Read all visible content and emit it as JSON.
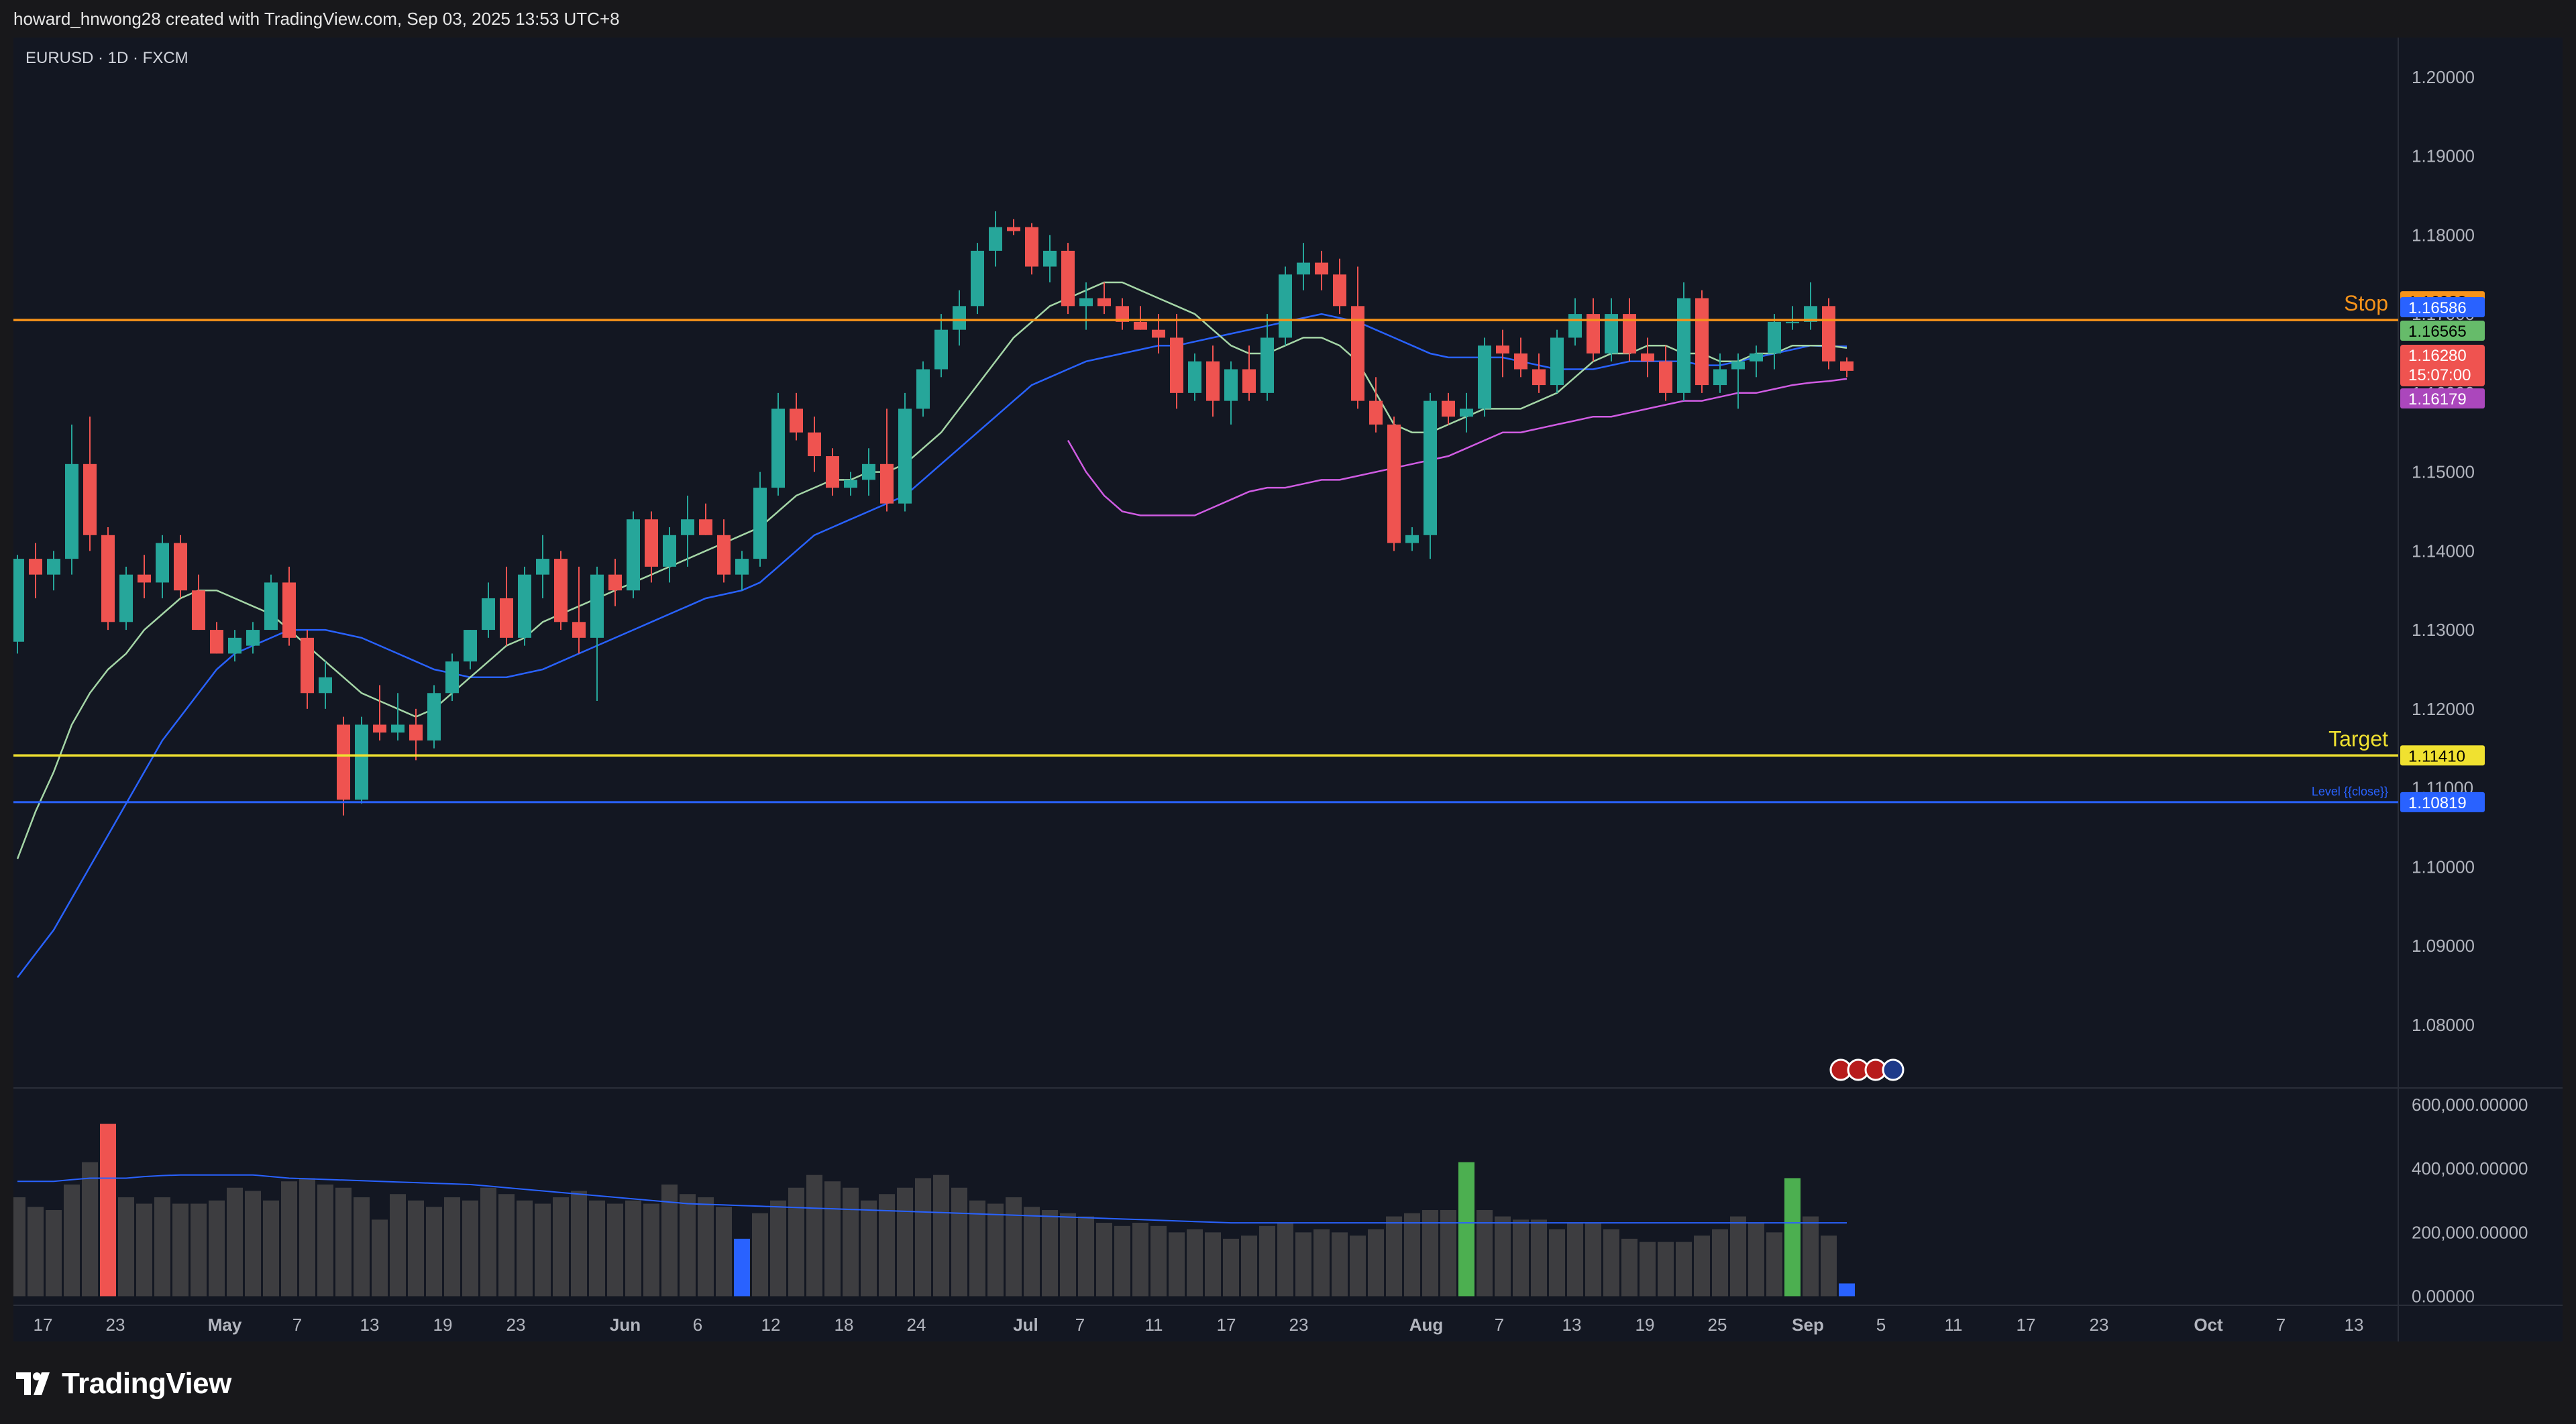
{
  "header": {
    "caption": "howard_hnwong28 created with TradingView.com, Sep 03, 2025 13:53 UTC+8"
  },
  "chart": {
    "symbol_legend": "EURUSD · 1D · FXCM"
  },
  "footer": {
    "brand": "TradingView"
  },
  "colors": {
    "background": "#131722",
    "bull": "#26a69a",
    "bear": "#ef5350",
    "stop_line": "#f7931a",
    "target_line": "#f0e130",
    "level_line": "#2962ff",
    "ma_fast": "#a5d6a7",
    "ma_mid": "#2962ff",
    "ma_slow": "#d05ce3",
    "volume_bar": "#3d3d40"
  },
  "chart_data": {
    "type": "candlestick",
    "symbol": "EURUSD",
    "interval": "1D",
    "source": "FXCM",
    "y_axis": {
      "ylim": [
        1.072,
        1.205
      ],
      "ticks": [
        "1.20000",
        "1.19000",
        "1.18000",
        "1.17000",
        "1.16000",
        "1.15000",
        "1.14000",
        "1.13000",
        "1.12000",
        "1.11000",
        "1.10000",
        "1.09000",
        "1.08000"
      ]
    },
    "x_axis": {
      "ticks": [
        "17",
        "23",
        "May",
        "7",
        "13",
        "19",
        "23",
        "Jun",
        "6",
        "12",
        "18",
        "24",
        "Jul",
        "7",
        "11",
        "17",
        "23",
        "Aug",
        "7",
        "13",
        "19",
        "25",
        "Sep",
        "5",
        "11",
        "17",
        "23",
        "Oct",
        "7",
        "13"
      ]
    },
    "horizontal_lines": [
      {
        "label": "Stop",
        "value": 1.16923,
        "value_label": "1.16923",
        "color": "#f7931a"
      },
      {
        "label": "Target",
        "value": 1.1141,
        "value_label": "1.11410",
        "color": "#f0e130"
      },
      {
        "label": "Level {{close}}",
        "value": 1.10819,
        "value_label": "1.10819",
        "color": "#2962ff"
      }
    ],
    "price_labels": [
      {
        "value_label": "1.16586",
        "value": 1.16586,
        "color": "#2962ff"
      },
      {
        "value_label": "1.16565",
        "value": 1.16565,
        "color": "#66bb6a"
      },
      {
        "value_label": "1.16280",
        "value": 1.1628,
        "countdown": "15:07:00",
        "color": "#ef5350"
      },
      {
        "value_label": "1.16179",
        "value": 1.16179,
        "color": "#ab47bc"
      }
    ],
    "candles": [
      [
        1.1285,
        1.1395,
        1.127,
        1.139
      ],
      [
        1.139,
        1.141,
        1.134,
        1.137
      ],
      [
        1.137,
        1.14,
        1.135,
        1.139
      ],
      [
        1.139,
        1.156,
        1.137,
        1.151
      ],
      [
        1.151,
        1.157,
        1.14,
        1.142
      ],
      [
        1.142,
        1.143,
        1.13,
        1.131
      ],
      [
        1.131,
        1.138,
        1.13,
        1.137
      ],
      [
        1.137,
        1.1395,
        1.134,
        1.136
      ],
      [
        1.136,
        1.142,
        1.134,
        1.141
      ],
      [
        1.141,
        1.142,
        1.134,
        1.135
      ],
      [
        1.135,
        1.137,
        1.13,
        1.13
      ],
      [
        1.13,
        1.131,
        1.127,
        1.127
      ],
      [
        1.127,
        1.13,
        1.126,
        1.129
      ],
      [
        1.128,
        1.131,
        1.127,
        1.13
      ],
      [
        1.13,
        1.137,
        1.13,
        1.136
      ],
      [
        1.136,
        1.138,
        1.128,
        1.129
      ],
      [
        1.129,
        1.13,
        1.12,
        1.122
      ],
      [
        1.122,
        1.126,
        1.12,
        1.124
      ],
      [
        1.118,
        1.119,
        1.1065,
        1.1085
      ],
      [
        1.1085,
        1.119,
        1.108,
        1.118
      ],
      [
        1.118,
        1.123,
        1.116,
        1.117
      ],
      [
        1.117,
        1.122,
        1.116,
        1.118
      ],
      [
        1.118,
        1.12,
        1.1135,
        1.116
      ],
      [
        1.116,
        1.123,
        1.115,
        1.122
      ],
      [
        1.122,
        1.127,
        1.121,
        1.126
      ],
      [
        1.126,
        1.13,
        1.125,
        1.13
      ],
      [
        1.13,
        1.136,
        1.129,
        1.134
      ],
      [
        1.134,
        1.138,
        1.128,
        1.129
      ],
      [
        1.129,
        1.138,
        1.128,
        1.137
      ],
      [
        1.137,
        1.142,
        1.134,
        1.139
      ],
      [
        1.139,
        1.14,
        1.13,
        1.131
      ],
      [
        1.131,
        1.138,
        1.127,
        1.129
      ],
      [
        1.129,
        1.138,
        1.121,
        1.137
      ],
      [
        1.137,
        1.139,
        1.133,
        1.135
      ],
      [
        1.135,
        1.145,
        1.134,
        1.144
      ],
      [
        1.144,
        1.145,
        1.136,
        1.138
      ],
      [
        1.138,
        1.143,
        1.136,
        1.142
      ],
      [
        1.142,
        1.147,
        1.138,
        1.144
      ],
      [
        1.144,
        1.146,
        1.142,
        1.142
      ],
      [
        1.142,
        1.144,
        1.136,
        1.137
      ],
      [
        1.137,
        1.14,
        1.135,
        1.139
      ],
      [
        1.139,
        1.15,
        1.138,
        1.148
      ],
      [
        1.148,
        1.16,
        1.147,
        1.158
      ],
      [
        1.158,
        1.16,
        1.154,
        1.155
      ],
      [
        1.155,
        1.157,
        1.15,
        1.152
      ],
      [
        1.152,
        1.153,
        1.147,
        1.148
      ],
      [
        1.148,
        1.15,
        1.147,
        1.149
      ],
      [
        1.149,
        1.153,
        1.147,
        1.151
      ],
      [
        1.151,
        1.158,
        1.145,
        1.146
      ],
      [
        1.146,
        1.16,
        1.145,
        1.158
      ],
      [
        1.158,
        1.164,
        1.157,
        1.163
      ],
      [
        1.163,
        1.17,
        1.162,
        1.168
      ],
      [
        1.168,
        1.173,
        1.166,
        1.171
      ],
      [
        1.171,
        1.179,
        1.17,
        1.178
      ],
      [
        1.178,
        1.183,
        1.176,
        1.181
      ],
      [
        1.181,
        1.182,
        1.18,
        1.1805
      ],
      [
        1.181,
        1.1815,
        1.175,
        1.176
      ],
      [
        1.176,
        1.18,
        1.174,
        1.178
      ],
      [
        1.178,
        1.179,
        1.17,
        1.171
      ],
      [
        1.171,
        1.174,
        1.168,
        1.172
      ],
      [
        1.172,
        1.174,
        1.17,
        1.171
      ],
      [
        1.171,
        1.172,
        1.168,
        1.169
      ],
      [
        1.169,
        1.171,
        1.168,
        1.168
      ],
      [
        1.168,
        1.17,
        1.165,
        1.167
      ],
      [
        1.167,
        1.17,
        1.158,
        1.16
      ],
      [
        1.16,
        1.165,
        1.159,
        1.164
      ],
      [
        1.164,
        1.166,
        1.157,
        1.159
      ],
      [
        1.159,
        1.164,
        1.156,
        1.163
      ],
      [
        1.163,
        1.166,
        1.159,
        1.16
      ],
      [
        1.16,
        1.17,
        1.159,
        1.167
      ],
      [
        1.167,
        1.176,
        1.166,
        1.175
      ],
      [
        1.175,
        1.179,
        1.173,
        1.1765
      ],
      [
        1.1765,
        1.178,
        1.173,
        1.175
      ],
      [
        1.175,
        1.177,
        1.17,
        1.171
      ],
      [
        1.171,
        1.176,
        1.158,
        1.159
      ],
      [
        1.159,
        1.162,
        1.155,
        1.156
      ],
      [
        1.156,
        1.157,
        1.14,
        1.141
      ],
      [
        1.141,
        1.143,
        1.14,
        1.142
      ],
      [
        1.142,
        1.16,
        1.139,
        1.159
      ],
      [
        1.159,
        1.16,
        1.156,
        1.157
      ],
      [
        1.157,
        1.16,
        1.155,
        1.158
      ],
      [
        1.158,
        1.167,
        1.157,
        1.166
      ],
      [
        1.166,
        1.168,
        1.162,
        1.165
      ],
      [
        1.165,
        1.167,
        1.162,
        1.163
      ],
      [
        1.163,
        1.165,
        1.16,
        1.161
      ],
      [
        1.161,
        1.168,
        1.16,
        1.167
      ],
      [
        1.167,
        1.172,
        1.166,
        1.17
      ],
      [
        1.17,
        1.172,
        1.164,
        1.165
      ],
      [
        1.165,
        1.172,
        1.164,
        1.17
      ],
      [
        1.17,
        1.172,
        1.164,
        1.165
      ],
      [
        1.165,
        1.167,
        1.162,
        1.164
      ],
      [
        1.164,
        1.166,
        1.159,
        1.16
      ],
      [
        1.16,
        1.174,
        1.159,
        1.172
      ],
      [
        1.172,
        1.173,
        1.16,
        1.161
      ],
      [
        1.161,
        1.165,
        1.16,
        1.163
      ],
      [
        1.163,
        1.165,
        1.158,
        1.164
      ],
      [
        1.164,
        1.166,
        1.162,
        1.165
      ],
      [
        1.165,
        1.17,
        1.163,
        1.169
      ],
      [
        1.169,
        1.171,
        1.168,
        1.169
      ],
      [
        1.169,
        1.174,
        1.168,
        1.171
      ],
      [
        1.171,
        1.172,
        1.163,
        1.164
      ],
      [
        1.164,
        1.1645,
        1.162,
        1.1628
      ]
    ],
    "ma_fast": [
      1.101,
      1.107,
      1.112,
      1.118,
      1.122,
      1.125,
      1.127,
      1.13,
      1.132,
      1.134,
      1.135,
      1.135,
      1.134,
      1.133,
      1.132,
      1.13,
      1.128,
      1.126,
      1.124,
      1.122,
      1.121,
      1.12,
      1.119,
      1.12,
      1.122,
      1.124,
      1.126,
      1.128,
      1.129,
      1.131,
      1.132,
      1.133,
      1.134,
      1.135,
      1.136,
      1.137,
      1.138,
      1.139,
      1.14,
      1.141,
      1.142,
      1.143,
      1.145,
      1.147,
      1.148,
      1.149,
      1.149,
      1.15,
      1.15,
      1.151,
      1.153,
      1.155,
      1.158,
      1.161,
      1.164,
      1.167,
      1.169,
      1.171,
      1.172,
      1.173,
      1.174,
      1.174,
      1.173,
      1.172,
      1.171,
      1.17,
      1.168,
      1.166,
      1.165,
      1.165,
      1.166,
      1.167,
      1.167,
      1.166,
      1.164,
      1.16,
      1.156,
      1.155,
      1.155,
      1.156,
      1.157,
      1.158,
      1.158,
      1.158,
      1.159,
      1.16,
      1.162,
      1.164,
      1.165,
      1.165,
      1.166,
      1.166,
      1.165,
      1.165,
      1.164,
      1.164,
      1.165,
      1.165,
      1.166,
      1.166,
      1.166,
      1.1657
    ],
    "ma_mid": [
      1.086,
      1.089,
      1.092,
      1.096,
      1.1,
      1.104,
      1.108,
      1.112,
      1.116,
      1.119,
      1.122,
      1.125,
      1.127,
      1.128,
      1.129,
      1.13,
      1.13,
      1.13,
      1.1295,
      1.129,
      1.128,
      1.127,
      1.126,
      1.125,
      1.1245,
      1.124,
      1.124,
      1.124,
      1.1245,
      1.125,
      1.126,
      1.127,
      1.128,
      1.129,
      1.13,
      1.131,
      1.132,
      1.133,
      1.134,
      1.1345,
      1.135,
      1.136,
      1.138,
      1.14,
      1.142,
      1.143,
      1.144,
      1.145,
      1.146,
      1.147,
      1.149,
      1.151,
      1.153,
      1.155,
      1.157,
      1.159,
      1.161,
      1.162,
      1.163,
      1.164,
      1.1645,
      1.165,
      1.1655,
      1.166,
      1.166,
      1.1665,
      1.167,
      1.1675,
      1.168,
      1.1685,
      1.169,
      1.1695,
      1.17,
      1.1695,
      1.169,
      1.168,
      1.167,
      1.166,
      1.165,
      1.1645,
      1.1645,
      1.1645,
      1.1645,
      1.164,
      1.1635,
      1.163,
      1.163,
      1.163,
      1.1635,
      1.164,
      1.164,
      1.164,
      1.164,
      1.1635,
      1.1635,
      1.164,
      1.1645,
      1.165,
      1.1655,
      1.166,
      1.1659,
      1.1659
    ],
    "ma_slow": [
      1.154,
      1.15,
      1.147,
      1.145,
      1.1445,
      1.1445,
      1.1445,
      1.1445,
      1.1455,
      1.1465,
      1.1475,
      1.148,
      1.148,
      1.1485,
      1.149,
      1.149,
      1.1495,
      1.15,
      1.1505,
      1.151,
      1.1515,
      1.152,
      1.153,
      1.154,
      1.155,
      1.155,
      1.1555,
      1.156,
      1.1565,
      1.157,
      1.157,
      1.1575,
      1.158,
      1.1585,
      1.159,
      1.159,
      1.1595,
      1.16,
      1.16,
      1.1605,
      1.161,
      1.1613,
      1.1615,
      1.1618
    ],
    "volume_ylim": [
      -20000,
      640000
    ],
    "volume_ticks": [
      "600,000.00000",
      "400,000.00000",
      "200,000.00000",
      "0.00000"
    ],
    "volume": [
      310000,
      280000,
      270000,
      350000,
      420000,
      540000,
      310000,
      290000,
      310000,
      290000,
      290000,
      300000,
      340000,
      330000,
      300000,
      360000,
      370000,
      350000,
      340000,
      310000,
      240000,
      320000,
      300000,
      280000,
      310000,
      300000,
      340000,
      320000,
      300000,
      290000,
      310000,
      330000,
      300000,
      290000,
      300000,
      290000,
      350000,
      320000,
      310000,
      280000,
      180000,
      260000,
      300000,
      340000,
      380000,
      360000,
      340000,
      300000,
      320000,
      340000,
      370000,
      380000,
      340000,
      300000,
      290000,
      310000,
      280000,
      270000,
      260000,
      250000,
      230000,
      220000,
      230000,
      220000,
      200000,
      210000,
      200000,
      180000,
      190000,
      220000,
      230000,
      200000,
      210000,
      200000,
      190000,
      210000,
      250000,
      260000,
      270000,
      270000,
      420000,
      270000,
      250000,
      240000,
      240000,
      210000,
      230000,
      230000,
      210000,
      180000,
      170000,
      170000,
      170000,
      190000,
      210000,
      250000,
      230000,
      200000,
      370000,
      250000,
      190000,
      40000
    ],
    "volume_avg": [
      360000,
      360000,
      360000,
      365000,
      370000,
      370000,
      370000,
      375000,
      378000,
      380000,
      380000,
      380000,
      380000,
      380000,
      375000,
      370000,
      368000,
      366000,
      364000,
      362000,
      360000,
      358000,
      356000,
      354000,
      352000,
      350000,
      345000,
      340000,
      335000,
      330000,
      325000,
      320000,
      315000,
      310000,
      305000,
      300000,
      295000,
      290000,
      288000,
      286000,
      284000,
      282000,
      280000,
      278000,
      276000,
      274000,
      272000,
      270000,
      268000,
      266000,
      264000,
      262000,
      260000,
      258000,
      256000,
      254000,
      252000,
      250000,
      248000,
      246000,
      244000,
      242000,
      240000,
      238000,
      236000,
      234000,
      232000,
      230000,
      230000,
      230000,
      230000,
      230000,
      230000,
      230000,
      230000,
      230000,
      230000,
      230000,
      230000,
      230000,
      230000,
      230000,
      230000,
      230000,
      230000,
      230000,
      230000,
      230000,
      230000,
      230000,
      230000,
      230000,
      230000,
      230000,
      230000,
      230000,
      230000,
      230000,
      230000,
      230000,
      230000,
      230000
    ],
    "volume_highlights": [
      {
        "index": 5,
        "color": "#ef5350"
      },
      {
        "index": 40,
        "color": "#2962ff"
      },
      {
        "index": 80,
        "color": "#4caf50"
      },
      {
        "index": 98,
        "color": "#4caf50"
      },
      {
        "index": 101,
        "color": "#2962ff"
      }
    ]
  }
}
